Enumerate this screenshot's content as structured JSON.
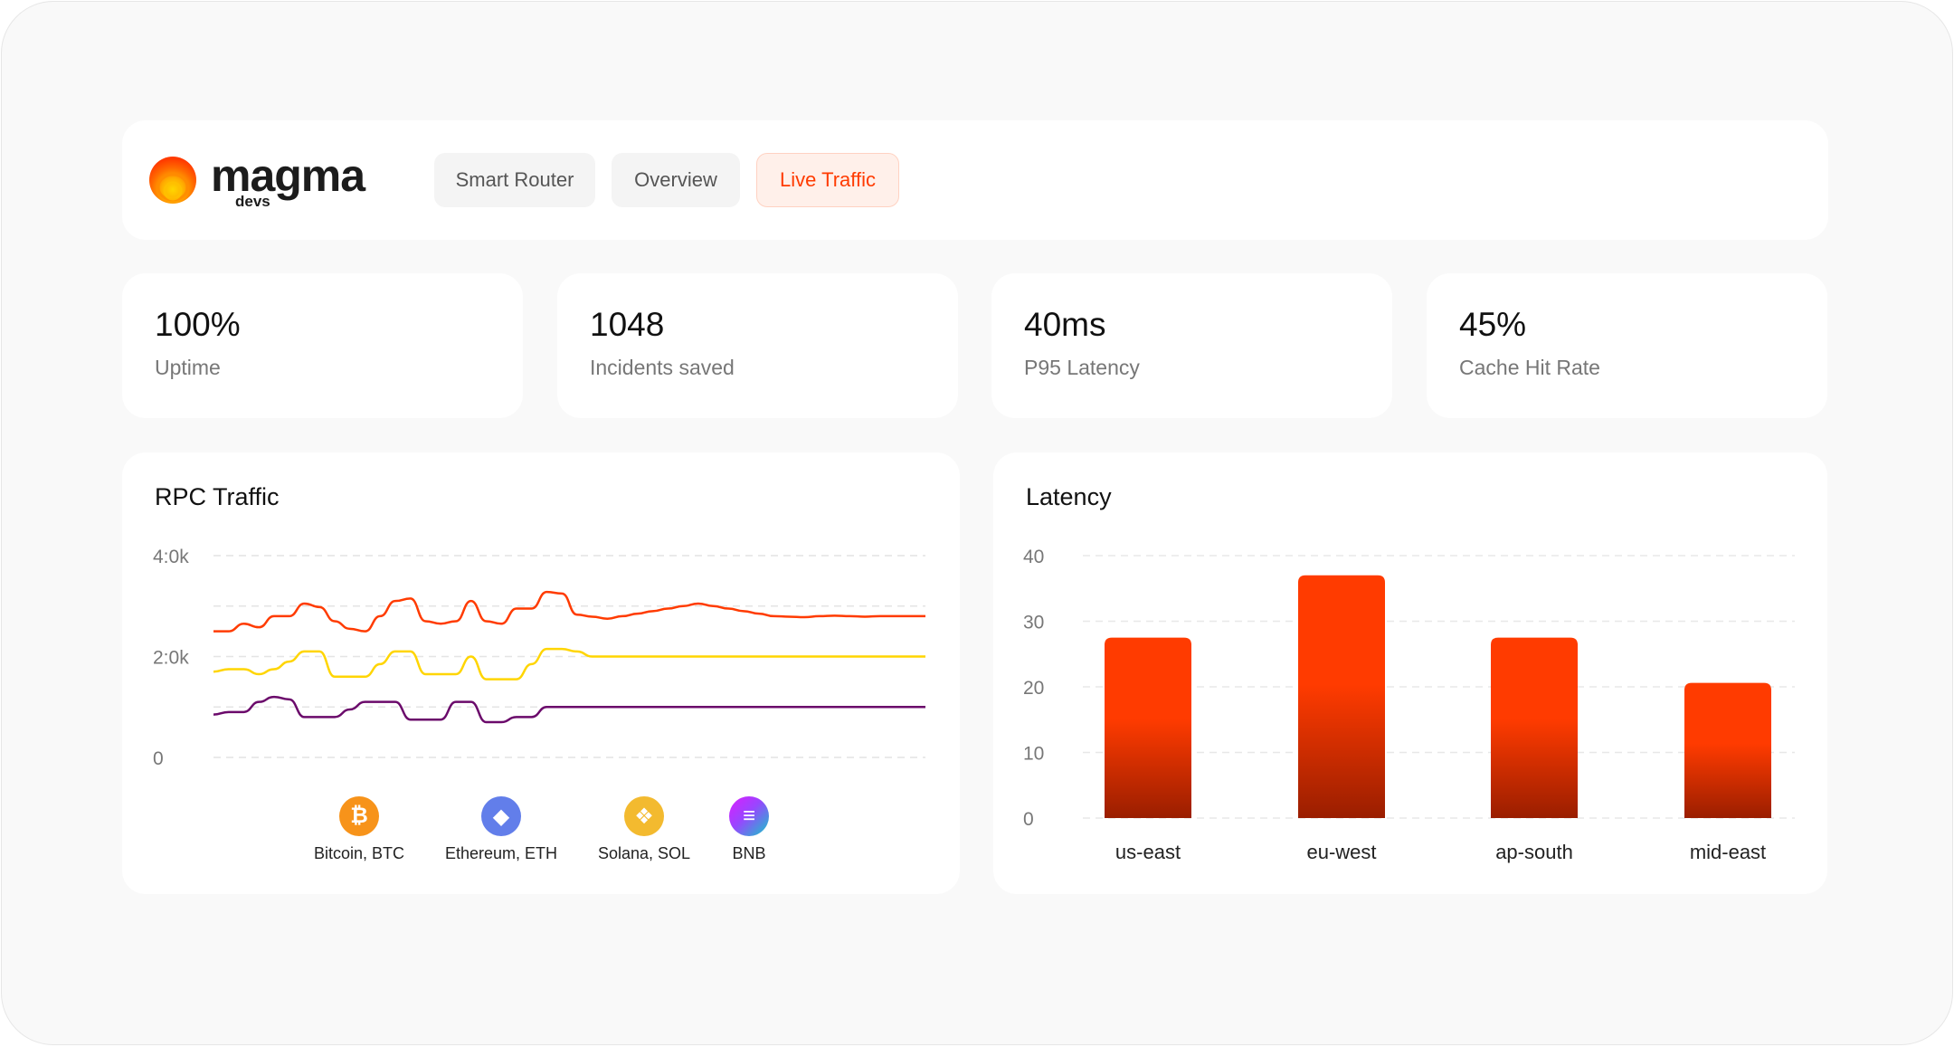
{
  "brand": {
    "name": "magma",
    "sub": "devs"
  },
  "tabs": [
    {
      "label": "Smart Router",
      "active": false
    },
    {
      "label": "Overview",
      "active": false
    },
    {
      "label": "Live Traffic",
      "active": true
    }
  ],
  "stats": [
    {
      "value": "100%",
      "label": "Uptime"
    },
    {
      "value": "1048",
      "label": "Incidents saved"
    },
    {
      "value": "40ms",
      "label": "P95 Latency"
    },
    {
      "value": "45%",
      "label": "Cache Hit Rate"
    }
  ],
  "colors": {
    "accent": "#ff3b00",
    "accent_dark": "#9a1e00",
    "btc": "#f7931a",
    "eth": "#627eea",
    "sol": "#f3ba2f",
    "bnb": "#9945ff"
  },
  "chart_data": [
    {
      "type": "line",
      "title": "RPC Traffic",
      "y_ticks": [
        "4:0k",
        "2:0k",
        "0"
      ],
      "ylim": [
        0,
        4000
      ],
      "x": [
        0,
        1,
        2,
        3,
        4,
        5,
        6,
        7,
        8,
        9,
        10,
        11,
        12,
        13,
        14,
        15,
        16,
        17,
        18,
        19,
        20,
        21,
        22,
        23,
        24,
        25,
        26,
        27,
        28,
        29,
        30,
        31,
        32,
        33,
        34,
        35,
        36,
        37,
        38,
        39,
        40,
        41,
        42,
        43,
        44,
        45,
        46,
        47
      ],
      "series": [
        {
          "color": "#ff3b00",
          "values": [
            2500,
            2500,
            2650,
            2580,
            2800,
            2800,
            3050,
            2980,
            2700,
            2550,
            2500,
            2800,
            3100,
            3150,
            2700,
            2650,
            2700,
            3100,
            2700,
            2650,
            2950,
            2950,
            3280,
            3250,
            2830,
            2790,
            2750,
            2800,
            2850,
            2900,
            2950,
            3000,
            3050,
            3000,
            2950,
            2900,
            2850,
            2800,
            2790,
            2780,
            2800,
            2810,
            2800,
            2790,
            2800,
            2800,
            2800,
            2800
          ]
        },
        {
          "color": "#ffd500",
          "values": [
            1700,
            1750,
            1750,
            1650,
            1750,
            1900,
            2100,
            2100,
            1600,
            1600,
            1600,
            1850,
            2100,
            2100,
            1650,
            1650,
            1650,
            2000,
            1550,
            1550,
            1550,
            1850,
            2150,
            2150,
            2100,
            2000,
            2000,
            2000,
            2000,
            2000,
            2000,
            2000,
            2000,
            2000,
            2000,
            2000,
            2000,
            2000,
            2000,
            2000,
            2000,
            2000,
            2000,
            2000,
            2000,
            2000,
            2000,
            2000
          ]
        },
        {
          "color": "#6b0a6b",
          "values": [
            850,
            900,
            900,
            1100,
            1200,
            1150,
            800,
            800,
            800,
            950,
            1100,
            1100,
            1100,
            750,
            750,
            750,
            1100,
            1100,
            700,
            700,
            800,
            800,
            1000,
            1000,
            1000,
            1000,
            1000,
            1000,
            1000,
            1000,
            1000,
            1000,
            1000,
            1000,
            1000,
            1000,
            1000,
            1000,
            1000,
            1000,
            1000,
            1000,
            1000,
            1000,
            1000,
            1000,
            1000,
            1000
          ]
        }
      ],
      "legend": [
        {
          "label": "Bitcoin, BTC",
          "icon": "bitcoin-icon",
          "color": "#f7931a"
        },
        {
          "label": "Ethereum, ETH",
          "icon": "ethereum-icon",
          "color": "#627eea"
        },
        {
          "label": "Solana, SOL",
          "icon": "bnb-icon",
          "color": "#f3ba2f"
        },
        {
          "label": "BNB",
          "icon": "solana-icon",
          "color": "#9945ff"
        }
      ],
      "grid": true
    },
    {
      "type": "bar",
      "title": "Latency",
      "categories": [
        "us-east",
        "eu-west",
        "ap-south",
        "mid-east"
      ],
      "values": [
        27.5,
        37,
        27.5,
        20.6
      ],
      "y_ticks": [
        "40",
        "30",
        "20",
        "10",
        "0"
      ],
      "ylim": [
        0,
        40
      ],
      "grid": true
    }
  ]
}
